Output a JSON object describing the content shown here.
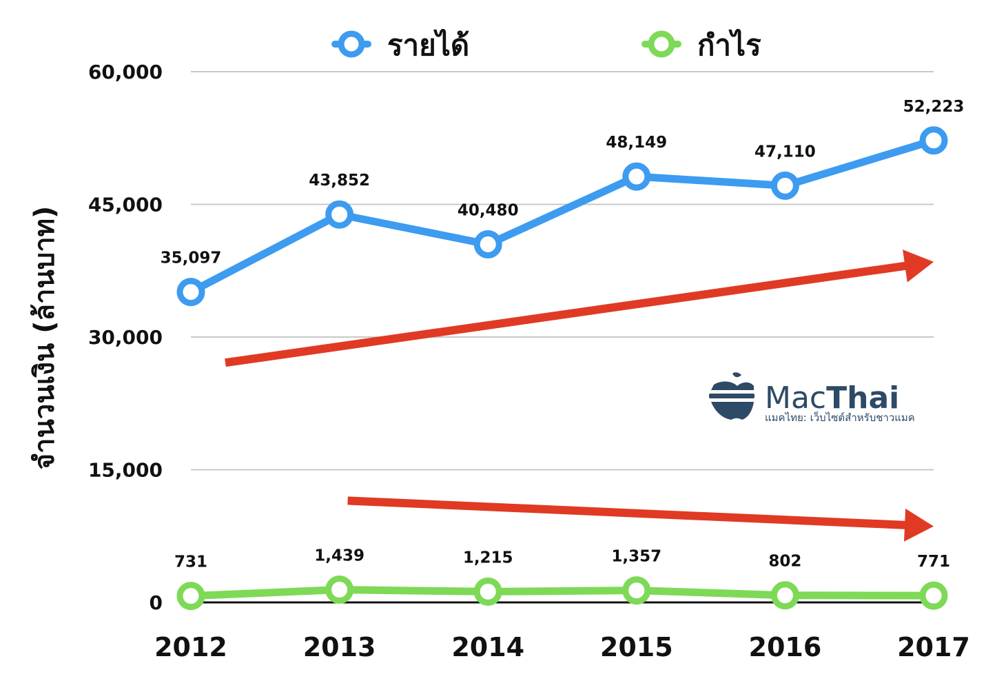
{
  "chart_data": {
    "type": "line",
    "categories": [
      "2012",
      "2013",
      "2014",
      "2015",
      "2016",
      "2017"
    ],
    "series": [
      {
        "name": "รายได้",
        "color": "#3d9bf0",
        "values": [
          35097,
          43852,
          40480,
          48149,
          47110,
          52223
        ],
        "labels": [
          "35,097",
          "43,852",
          "40,480",
          "48,149",
          "47,110",
          "52,223"
        ]
      },
      {
        "name": "กำไร",
        "color": "#7ed957",
        "values": [
          731,
          1439,
          1215,
          1357,
          802,
          771
        ],
        "labels": [
          "731",
          "1,439",
          "1,215",
          "1,357",
          "802",
          "771"
        ]
      }
    ],
    "y_ticks": [
      0,
      15000,
      30000,
      45000,
      60000
    ],
    "y_tick_labels": [
      "0",
      "15,000",
      "30,000",
      "45,000",
      "60,000"
    ],
    "ylim": [
      0,
      60000
    ],
    "ylabel": "จำนวนเงิน (ล้านบาท)",
    "xlabel": "",
    "grid": true,
    "legend": "top-center",
    "annotations": [
      {
        "type": "trend-arrow",
        "color": "#e03a24",
        "direction": "up",
        "from": [
          "2012",
          27100
        ],
        "to": [
          "2017",
          38500
        ]
      },
      {
        "type": "trend-arrow",
        "color": "#e03a24",
        "direction": "down",
        "from": [
          "2013",
          11500
        ],
        "to": [
          "2017",
          8600
        ]
      }
    ]
  },
  "watermark": {
    "name_light": "Mac",
    "name_bold": "Thai",
    "tagline": "แมคไทย: เว็บไซต์สำหรับชาวแมค",
    "color": "#2d4a66"
  }
}
